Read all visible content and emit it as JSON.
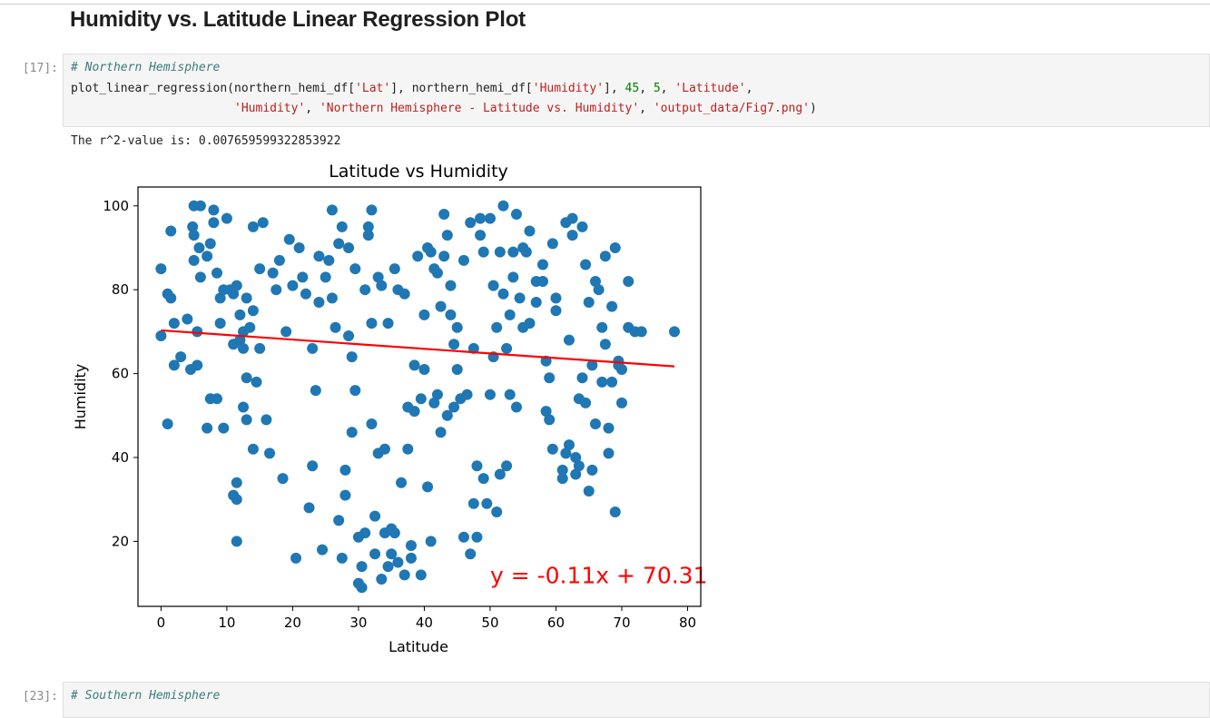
{
  "markdown_heading": "Humidity vs. Latitude Linear Regression Plot",
  "cells": [
    {
      "prompt": "[17]:",
      "comment": "# Northern Hemisphere",
      "line1": {
        "fn": "plot_linear_regression(northern_hemi_df[",
        "s1": "'Lat'",
        "p1": "], northern_hemi_df[",
        "s2": "'Humidity'",
        "p2": "], ",
        "n1": "45",
        "p3": ", ",
        "n2": "5",
        "p4": ", ",
        "s3": "'Latitude'",
        "p5": ","
      },
      "line2": {
        "indent": "                       ",
        "s1": "'Humidity'",
        "p1": ", ",
        "s2": "'Northern Hemisphere - Latitude vs. Humidity'",
        "p2": ", ",
        "s3": "'output_data/Fig7.png'",
        "p3": ")"
      },
      "output": "The r^2-value is: 0.007659599322853922"
    },
    {
      "prompt": "[23]:",
      "comment": "# Southern Hemisphere"
    }
  ],
  "chart_data": {
    "type": "scatter",
    "title": "Latitude vs Humidity",
    "xlabel": "Latitude",
    "ylabel": "Humidity",
    "xlim": [
      -3.5,
      82
    ],
    "ylim": [
      4.5,
      104.5
    ],
    "xticks": [
      0,
      10,
      20,
      30,
      40,
      50,
      60,
      70,
      80
    ],
    "yticks": [
      20,
      40,
      60,
      80,
      100
    ],
    "tick_labels_x": [
      "0",
      "10",
      "20",
      "30",
      "40",
      "50",
      "60",
      "70",
      "80"
    ],
    "tick_labels_y": [
      "20",
      "40",
      "60",
      "80",
      "100"
    ],
    "point_color": "#1f77b4",
    "regression": {
      "slope": -0.11,
      "intercept": 70.31,
      "x_range": [
        0,
        78
      ],
      "color": "#ff0000"
    },
    "annotation": {
      "text": "y = -0.11x + 70.31",
      "x": 50,
      "y": 10,
      "color": "#ff0000"
    },
    "points": [
      [
        0,
        85
      ],
      [
        0,
        69
      ],
      [
        1,
        48
      ],
      [
        1,
        79
      ],
      [
        1.5,
        94
      ],
      [
        1.5,
        78
      ],
      [
        2,
        72
      ],
      [
        2,
        62
      ],
      [
        3,
        64
      ],
      [
        4,
        73
      ],
      [
        4.5,
        61
      ],
      [
        4.8,
        95
      ],
      [
        5,
        93
      ],
      [
        5,
        87
      ],
      [
        5,
        100
      ],
      [
        5.5,
        62
      ],
      [
        5.5,
        70
      ],
      [
        5.8,
        90
      ],
      [
        6,
        100
      ],
      [
        6,
        83
      ],
      [
        7,
        88
      ],
      [
        7,
        47
      ],
      [
        7.5,
        54
      ],
      [
        7.5,
        91
      ],
      [
        8,
        99
      ],
      [
        8,
        96
      ],
      [
        8.5,
        84
      ],
      [
        8.5,
        54
      ],
      [
        9,
        78
      ],
      [
        9,
        72
      ],
      [
        9.5,
        80
      ],
      [
        9.5,
        47
      ],
      [
        10,
        97
      ],
      [
        10.5,
        80
      ],
      [
        11,
        31
      ],
      [
        11,
        67
      ],
      [
        11,
        79
      ],
      [
        11.5,
        81
      ],
      [
        11.5,
        30
      ],
      [
        11.5,
        34
      ],
      [
        11.5,
        20
      ],
      [
        12,
        74
      ],
      [
        12,
        68
      ],
      [
        12.5,
        66
      ],
      [
        12.5,
        70
      ],
      [
        12.5,
        52
      ],
      [
        13,
        78
      ],
      [
        13,
        49
      ],
      [
        13,
        59
      ],
      [
        13.5,
        71
      ],
      [
        14,
        95
      ],
      [
        14,
        75
      ],
      [
        14,
        42
      ],
      [
        14.5,
        58
      ],
      [
        15,
        85
      ],
      [
        15,
        66
      ],
      [
        15.5,
        96
      ],
      [
        16,
        49
      ],
      [
        16.5,
        41
      ],
      [
        17,
        84
      ],
      [
        17.5,
        80
      ],
      [
        18,
        87
      ],
      [
        18.5,
        35
      ],
      [
        19,
        70
      ],
      [
        19.5,
        92
      ],
      [
        20,
        81
      ],
      [
        20.5,
        16
      ],
      [
        21,
        90
      ],
      [
        21.5,
        83
      ],
      [
        22,
        79
      ],
      [
        22.5,
        28
      ],
      [
        23,
        66
      ],
      [
        23,
        38
      ],
      [
        23.5,
        56
      ],
      [
        24,
        88
      ],
      [
        24,
        77
      ],
      [
        24.5,
        18
      ],
      [
        25,
        83
      ],
      [
        25.5,
        87
      ],
      [
        26,
        99
      ],
      [
        26,
        78
      ],
      [
        26.5,
        71
      ],
      [
        27,
        25
      ],
      [
        27,
        91
      ],
      [
        27.5,
        95
      ],
      [
        27.5,
        16
      ],
      [
        28,
        31
      ],
      [
        28,
        37
      ],
      [
        28.5,
        69
      ],
      [
        28.5,
        90
      ],
      [
        29,
        64
      ],
      [
        29,
        46
      ],
      [
        29.5,
        56
      ],
      [
        29.5,
        85
      ],
      [
        30,
        10
      ],
      [
        30,
        21
      ],
      [
        30.5,
        14
      ],
      [
        30.5,
        9
      ],
      [
        31,
        80
      ],
      [
        31,
        22
      ],
      [
        31.5,
        93
      ],
      [
        31.5,
        95
      ],
      [
        32,
        99
      ],
      [
        32,
        72
      ],
      [
        32,
        48
      ],
      [
        32.5,
        26
      ],
      [
        32.5,
        17
      ],
      [
        33,
        83
      ],
      [
        33,
        41
      ],
      [
        33.5,
        11
      ],
      [
        33.5,
        81
      ],
      [
        34,
        22
      ],
      [
        34,
        42
      ],
      [
        34.5,
        72
      ],
      [
        34.5,
        14
      ],
      [
        35,
        17
      ],
      [
        35,
        23
      ],
      [
        35.5,
        22
      ],
      [
        35.5,
        85
      ],
      [
        36,
        80
      ],
      [
        36,
        15
      ],
      [
        36.5,
        34
      ],
      [
        37,
        79
      ],
      [
        37,
        12
      ],
      [
        37.5,
        52
      ],
      [
        37.5,
        42
      ],
      [
        38,
        16
      ],
      [
        38,
        19
      ],
      [
        38.5,
        62
      ],
      [
        38.5,
        51
      ],
      [
        39,
        88
      ],
      [
        39.5,
        12
      ],
      [
        39.5,
        54
      ],
      [
        40,
        74
      ],
      [
        40,
        61
      ],
      [
        40.5,
        90
      ],
      [
        40.5,
        33
      ],
      [
        41,
        89
      ],
      [
        41,
        20
      ],
      [
        41.5,
        53
      ],
      [
        41.5,
        85
      ],
      [
        42,
        84
      ],
      [
        42,
        55
      ],
      [
        42.5,
        76
      ],
      [
        42.5,
        46
      ],
      [
        43,
        98
      ],
      [
        43,
        88
      ],
      [
        43.5,
        93
      ],
      [
        43.5,
        50
      ],
      [
        44,
        81
      ],
      [
        44,
        74
      ],
      [
        44.5,
        67
      ],
      [
        44.5,
        52
      ],
      [
        45,
        61
      ],
      [
        45,
        71
      ],
      [
        45.5,
        54
      ],
      [
        46,
        87
      ],
      [
        46,
        21
      ],
      [
        46.5,
        55
      ],
      [
        47,
        17
      ],
      [
        47,
        96
      ],
      [
        47.5,
        29
      ],
      [
        47.5,
        66
      ],
      [
        48,
        21
      ],
      [
        48,
        38
      ],
      [
        48.5,
        97
      ],
      [
        48.5,
        93
      ],
      [
        49,
        89
      ],
      [
        49,
        35
      ],
      [
        49.5,
        29
      ],
      [
        50,
        97
      ],
      [
        50,
        55
      ],
      [
        50.5,
        81
      ],
      [
        50.5,
        64
      ],
      [
        51,
        27
      ],
      [
        51,
        71
      ],
      [
        51.5,
        89
      ],
      [
        51.5,
        36
      ],
      [
        52,
        100
      ],
      [
        52,
        79
      ],
      [
        52.5,
        66
      ],
      [
        52.5,
        38
      ],
      [
        53,
        74
      ],
      [
        53,
        55
      ],
      [
        53.5,
        89
      ],
      [
        53.5,
        83
      ],
      [
        54,
        98
      ],
      [
        54,
        52
      ],
      [
        54.5,
        78
      ],
      [
        55,
        90
      ],
      [
        55,
        71
      ],
      [
        55.5,
        89
      ],
      [
        56,
        94
      ],
      [
        56,
        72
      ],
      [
        57,
        77
      ],
      [
        57,
        82
      ],
      [
        58,
        82
      ],
      [
        58,
        86
      ],
      [
        58.5,
        63
      ],
      [
        58.5,
        51
      ],
      [
        59,
        49
      ],
      [
        59,
        59
      ],
      [
        59.5,
        91
      ],
      [
        59.5,
        42
      ],
      [
        60,
        78
      ],
      [
        60,
        75
      ],
      [
        61,
        37
      ],
      [
        61,
        35
      ],
      [
        61.5,
        96
      ],
      [
        61.5,
        41
      ],
      [
        62,
        68
      ],
      [
        62,
        43
      ],
      [
        62.5,
        97
      ],
      [
        62.5,
        93
      ],
      [
        63,
        40
      ],
      [
        63,
        36
      ],
      [
        63.5,
        38
      ],
      [
        63.5,
        54
      ],
      [
        64,
        95
      ],
      [
        64,
        59
      ],
      [
        64.5,
        86
      ],
      [
        64.5,
        53
      ],
      [
        65,
        77
      ],
      [
        65,
        32
      ],
      [
        65.5,
        62
      ],
      [
        65.5,
        37
      ],
      [
        66,
        82
      ],
      [
        66,
        48
      ],
      [
        66.5,
        80
      ],
      [
        67,
        71
      ],
      [
        67,
        58
      ],
      [
        67.5,
        88
      ],
      [
        67.5,
        67
      ],
      [
        68,
        47
      ],
      [
        68,
        41
      ],
      [
        68.5,
        76
      ],
      [
        68.5,
        58
      ],
      [
        69,
        90
      ],
      [
        69,
        27
      ],
      [
        69.5,
        63
      ],
      [
        69.5,
        62
      ],
      [
        70,
        53
      ],
      [
        70,
        61
      ],
      [
        71,
        82
      ],
      [
        71,
        71
      ],
      [
        72,
        70
      ],
      [
        73,
        70
      ],
      [
        78,
        70
      ]
    ]
  }
}
